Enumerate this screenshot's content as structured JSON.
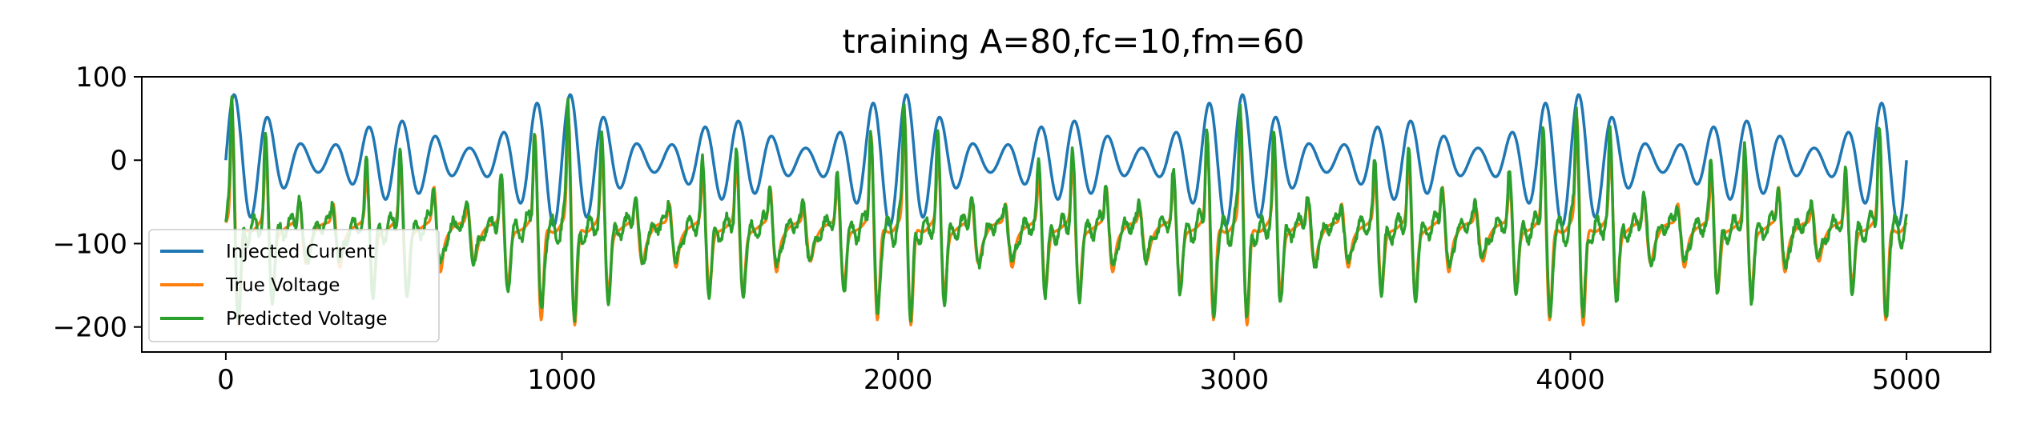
{
  "chart_data": {
    "type": "line",
    "title": "training A=80,fc=10,fm=60",
    "xlabel": "",
    "ylabel": "",
    "xlim": [
      -250,
      5250
    ],
    "ylim": [
      -230,
      100
    ],
    "x_ticks": [
      0,
      1000,
      2000,
      3000,
      4000,
      5000
    ],
    "y_ticks": [
      100,
      0,
      -100,
      -200
    ],
    "x_tick_labels": [
      "0",
      "1000",
      "2000",
      "3000",
      "4000",
      "5000"
    ],
    "y_tick_labels": [
      "100",
      "0",
      "−100",
      "−200"
    ],
    "grid": false,
    "legend_position": "lower-left",
    "x_samples": 5001,
    "series": [
      {
        "name": "Injected Current",
        "color": "#1f77b4",
        "amplitude": 80,
        "carrier_period": 100,
        "envelope_period": 1000,
        "range": [
          -78,
          78
        ]
      },
      {
        "name": "True Voltage",
        "color": "#ff7f0e",
        "range": [
          -213,
          50
        ],
        "rest_level": -75
      },
      {
        "name": "Predicted Voltage",
        "color": "#2ca02c",
        "range": [
          -210,
          86
        ]
      }
    ]
  }
}
